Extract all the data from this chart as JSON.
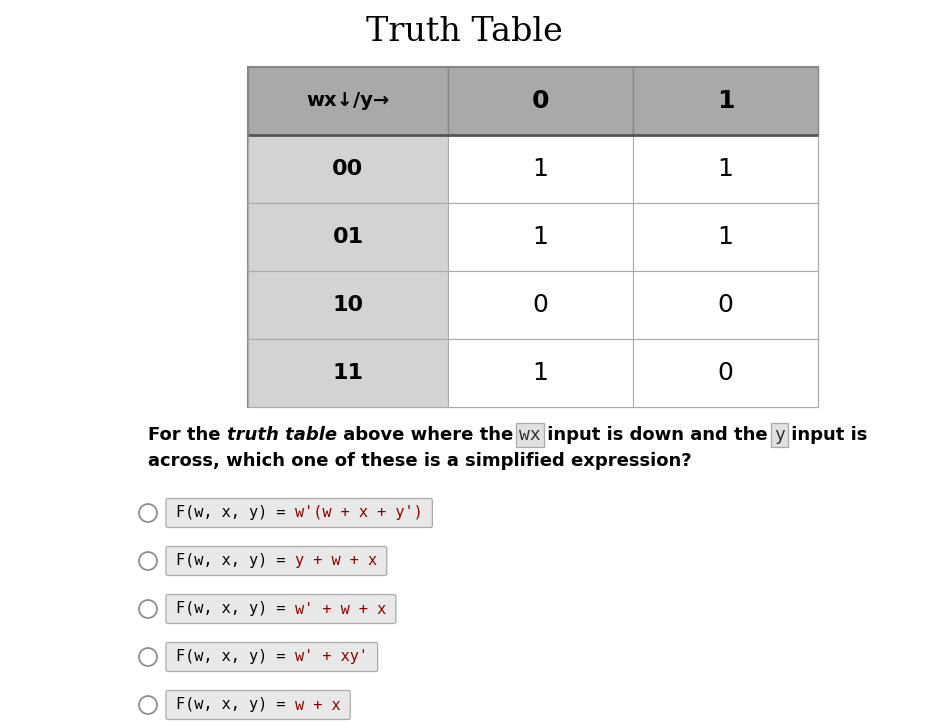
{
  "title": "Truth Table",
  "title_fontsize": 24,
  "header_row": [
    "wx↓/y→",
    "0",
    "1"
  ],
  "table_rows": [
    [
      "00",
      "1",
      "1"
    ],
    [
      "01",
      "1",
      "1"
    ],
    [
      "10",
      "0",
      "0"
    ],
    [
      "11",
      "1",
      "0"
    ]
  ],
  "header_bg": "#a9a9a9",
  "header_fg": "#000000",
  "row_label_bg": "#d3d3d3",
  "row_label_fg": "#000000",
  "cell_bg": "#ffffff",
  "cell_fg": "#000000",
  "options": [
    [
      "F(w, x, y) = ",
      "w'(w + x + y')"
    ],
    [
      "F(w, x, y) = ",
      "y + w + x"
    ],
    [
      "F(w, x, y) = ",
      "w' + w + x"
    ],
    [
      "F(w, x, y) = ",
      "w' + xy'"
    ],
    [
      "F(w, x, y) = ",
      "w + x"
    ]
  ],
  "option_rhs_color": "#8b0000",
  "option_lhs_color": "#000000",
  "option_box_bg": "#e8e8e8",
  "option_box_edge": "#aaaaaa",
  "bg_color": "#ffffff"
}
